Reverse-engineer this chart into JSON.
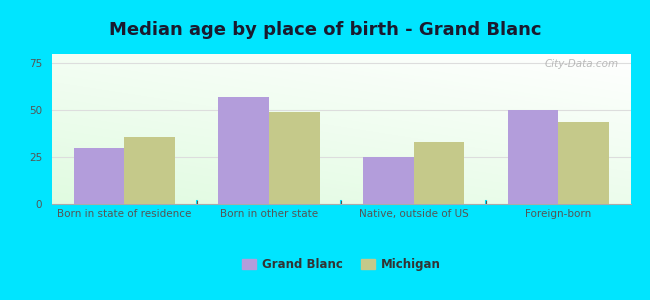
{
  "title": "Median age by place of birth - Grand Blanc",
  "categories": [
    "Born in state of residence",
    "Born in other state",
    "Native, outside of US",
    "Foreign-born"
  ],
  "grand_blanc_values": [
    30,
    57,
    25,
    50
  ],
  "michigan_values": [
    36,
    49,
    33,
    44
  ],
  "grand_blanc_color": "#b39ddb",
  "michigan_color": "#c5c98a",
  "background_outer": "#00e5ff",
  "ylim": [
    0,
    80
  ],
  "yticks": [
    0,
    25,
    50,
    75
  ],
  "bar_width": 0.35,
  "legend_labels": [
    "Grand Blanc",
    "Michigan"
  ],
  "title_fontsize": 13,
  "tick_fontsize": 7.5,
  "legend_fontsize": 8.5,
  "watermark": "City-Data.com"
}
